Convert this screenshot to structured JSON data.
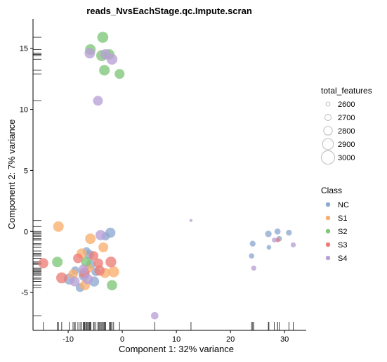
{
  "chart_data": {
    "type": "scatter",
    "title": "reads_NvsEachStage.qc.Impute.scran",
    "xlabel": "Component 1: 32% variance",
    "ylabel": "Component 2: 7% variance",
    "xlim": [
      -16.5,
      34
    ],
    "ylim": [
      -8.1,
      17.4
    ],
    "xticks": [
      -10,
      0,
      10,
      20,
      30
    ],
    "yticks": [
      -5,
      0,
      5,
      10,
      15
    ],
    "grid": false,
    "rug": true,
    "size_legend": {
      "title": "total_features",
      "values": [
        2600,
        2700,
        2800,
        2900,
        3000
      ]
    },
    "color_legend": {
      "title": "Class",
      "entries": [
        {
          "name": "NC",
          "color": "#8DA9D0"
        },
        {
          "name": "S1",
          "color": "#F8AE6E"
        },
        {
          "name": "S2",
          "color": "#7DC777"
        },
        {
          "name": "S3",
          "color": "#EC7E77"
        },
        {
          "name": "S4",
          "color": "#B8A0D6"
        }
      ]
    },
    "series": [
      {
        "name": "NC",
        "points": [
          [
            -2.2,
            -0.1,
            2860
          ],
          [
            -3.1,
            -0.4,
            2780
          ],
          [
            -6.1,
            -1.9,
            2840
          ],
          [
            -5.8,
            -2.7,
            2820
          ],
          [
            -4.9,
            -3.3,
            2800
          ],
          [
            -7.1,
            -3.6,
            2880
          ],
          [
            -5.2,
            -4.1,
            2860
          ],
          [
            -7.8,
            -4.6,
            2800
          ],
          [
            -9.8,
            -3.9,
            2900
          ],
          [
            -8.7,
            -3.2,
            2780
          ],
          [
            -6.6,
            -1.6,
            2760
          ],
          [
            23.9,
            -2.0,
            2660
          ],
          [
            24.1,
            -1.0,
            2680
          ],
          [
            27.0,
            -0.2,
            2710
          ],
          [
            28.7,
            0.0,
            2690
          ],
          [
            30.8,
            -0.1,
            2680
          ],
          [
            29.0,
            -0.6,
            2670
          ],
          [
            27.1,
            -1.3,
            2630
          ]
        ]
      },
      {
        "name": "S1",
        "points": [
          [
            -11.8,
            0.4,
            2880
          ],
          [
            -5.9,
            -0.6,
            2880
          ],
          [
            -3.5,
            -1.3,
            2850
          ],
          [
            -7.5,
            -1.8,
            2860
          ],
          [
            -6.9,
            -4.4,
            2860
          ],
          [
            -3.2,
            -3.4,
            2860
          ],
          [
            -1.6,
            -3.3,
            2900
          ],
          [
            -9.1,
            -3.5,
            2840
          ],
          [
            -6.3,
            -3.0,
            2830
          ]
        ]
      },
      {
        "name": "S2",
        "points": [
          [
            -3.6,
            15.9,
            2900
          ],
          [
            -5.9,
            14.9,
            2880
          ],
          [
            -3.8,
            14.4,
            2900
          ],
          [
            -2.4,
            14.5,
            2870
          ],
          [
            -3.3,
            13.2,
            2880
          ],
          [
            -0.5,
            12.9,
            2850
          ],
          [
            -12.0,
            -2.5,
            2880
          ],
          [
            -1.9,
            -4.4,
            2870
          ],
          [
            -6.7,
            -2.5,
            2850
          ]
        ]
      },
      {
        "name": "S3",
        "points": [
          [
            -14.6,
            -2.6,
            2860
          ],
          [
            -11.2,
            -3.8,
            2900
          ],
          [
            -2.1,
            -2.5,
            2890
          ],
          [
            -4.2,
            -3.2,
            2870
          ],
          [
            -7.0,
            -3.4,
            2880
          ],
          [
            -8.2,
            -2.2,
            2840
          ],
          [
            -5.3,
            -2.0,
            2840
          ],
          [
            -4.4,
            -2.6,
            2830
          ],
          [
            28.7,
            -0.7,
            2620
          ]
        ]
      },
      {
        "name": "S4",
        "points": [
          [
            -6.0,
            14.6,
            2880
          ],
          [
            -3.1,
            14.5,
            2880
          ],
          [
            -1.9,
            14.1,
            2890
          ],
          [
            -4.5,
            10.7,
            2850
          ],
          [
            -4.0,
            -0.3,
            2870
          ],
          [
            -6.4,
            -3.9,
            2870
          ],
          [
            -8.8,
            -4.1,
            2850
          ],
          [
            -7.2,
            -3.1,
            2840
          ],
          [
            6.0,
            -6.9,
            2750
          ],
          [
            12.7,
            0.9,
            2560
          ],
          [
            28.1,
            -0.7,
            2640
          ],
          [
            31.6,
            -1.1,
            2650
          ],
          [
            24.3,
            -3.0,
            2650
          ]
        ]
      }
    ]
  }
}
